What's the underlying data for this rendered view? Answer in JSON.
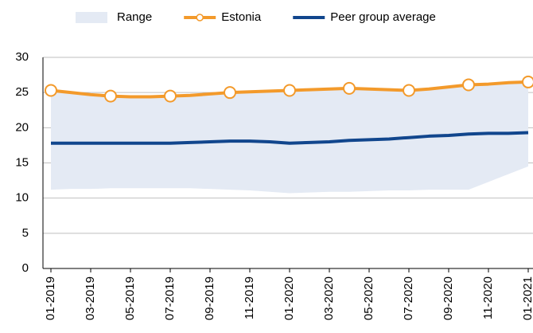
{
  "chart_data": {
    "type": "line",
    "categories": [
      "01-2019",
      null,
      "03-2019",
      null,
      "05-2019",
      null,
      "07-2019",
      null,
      "09-2019",
      null,
      "11-2019",
      null,
      "01-2020",
      null,
      "03-2020",
      null,
      "05-2020",
      null,
      "07-2020",
      null,
      "09-2020",
      null,
      "11-2020",
      null,
      "01-2021"
    ],
    "series": [
      {
        "name": "Range",
        "kind": "band",
        "color": "#e4eaf4",
        "high": [
          25.3,
          25.0,
          24.7,
          24.5,
          24.4,
          24.4,
          24.5,
          24.6,
          24.8,
          25.0,
          25.1,
          25.2,
          25.3,
          25.4,
          25.5,
          25.6,
          25.5,
          25.4,
          25.3,
          25.5,
          25.8,
          26.1,
          26.2,
          26.4,
          26.5
        ],
        "low": [
          11.2,
          11.3,
          11.3,
          11.4,
          11.4,
          11.4,
          11.4,
          11.4,
          11.3,
          11.2,
          11.1,
          10.9,
          10.7,
          10.8,
          10.9,
          10.9,
          11.0,
          11.1,
          11.1,
          11.2,
          11.2,
          11.2,
          12.3,
          13.4,
          14.5
        ]
      },
      {
        "name": "Estonia",
        "kind": "line",
        "color": "#f39a2b",
        "marker_every": 3,
        "values": [
          25.3,
          25.0,
          24.7,
          24.5,
          24.4,
          24.4,
          24.5,
          24.6,
          24.8,
          25.0,
          25.1,
          25.2,
          25.3,
          25.4,
          25.5,
          25.6,
          25.5,
          25.4,
          25.3,
          25.5,
          25.8,
          26.1,
          26.2,
          26.4,
          26.5
        ]
      },
      {
        "name": "Peer group average",
        "kind": "line",
        "color": "#11468d",
        "values": [
          17.8,
          17.8,
          17.8,
          17.8,
          17.8,
          17.8,
          17.8,
          17.9,
          18.0,
          18.1,
          18.1,
          18.0,
          17.8,
          17.9,
          18.0,
          18.2,
          18.3,
          18.4,
          18.6,
          18.8,
          18.9,
          19.1,
          19.2,
          19.2,
          19.3
        ]
      }
    ],
    "ylim": [
      0,
      30
    ],
    "yticks": [
      0,
      5,
      10,
      15,
      20,
      25,
      30
    ],
    "grid": true,
    "legend": "top"
  }
}
